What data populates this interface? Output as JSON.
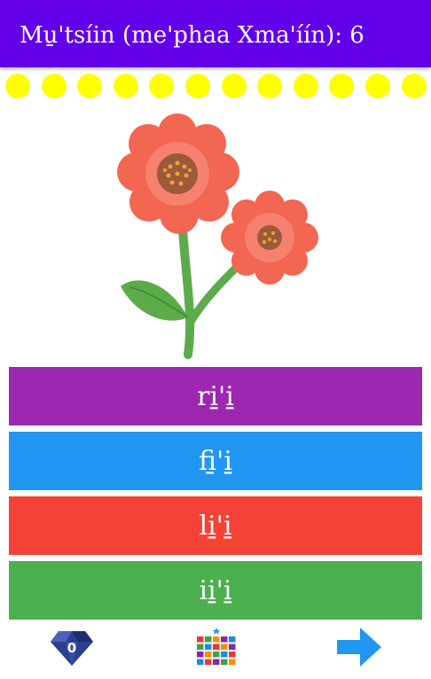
{
  "header": {
    "title": "Mu̱'tsíin (me'phaa Xma'íín): 6",
    "background": "#6200ea"
  },
  "progress": {
    "dot_count": 12,
    "dot_color": "#ffff00"
  },
  "picture": {
    "icon": "flower-icon"
  },
  "answers": [
    {
      "label": "ri̱'i̱",
      "color": "#9c27b0"
    },
    {
      "label": "fi̱'i̱",
      "color": "#2196f3"
    },
    {
      "label": "li̱'i̱",
      "color": "#f44336"
    },
    {
      "label": "ii̱'i̱",
      "color": "#4caf50"
    }
  ],
  "bottom_bar": {
    "gem_count": "0",
    "gem_icon": "diamond-icon",
    "grid_icon": "level-grid-icon",
    "next_icon": "arrow-right-icon"
  }
}
